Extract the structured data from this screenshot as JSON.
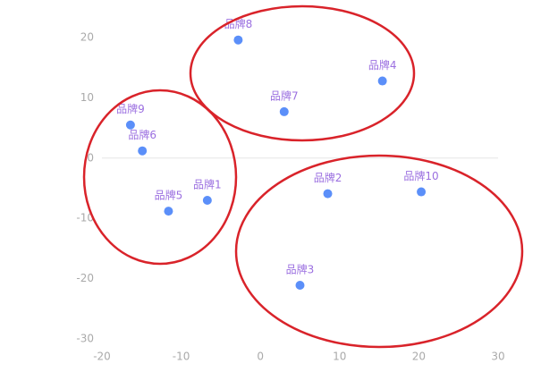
{
  "chart_data": {
    "type": "scatter",
    "series": [
      {
        "color": "#5b8ff9",
        "label_color": "#9b6fe0",
        "labels": [
          "品牌1",
          "品牌2",
          "品牌3",
          "品牌4",
          "品牌5",
          "品牌6",
          "品牌7",
          "品牌8",
          "品牌9",
          "品牌10"
        ],
        "x": [
          -6.7,
          8.5,
          5.0,
          15.4,
          -11.6,
          -14.9,
          3.0,
          -2.8,
          -16.4,
          20.3
        ],
        "values": [
          -7.0,
          -5.9,
          -21.1,
          12.8,
          -8.8,
          1.2,
          7.7,
          19.6,
          5.5,
          -5.6
        ]
      }
    ],
    "xlim": [
      -20,
      30
    ],
    "xticks": [
      -20,
      -10,
      0,
      10,
      20,
      30
    ],
    "ylim": [
      -30,
      20
    ],
    "yticks": [
      -30,
      -20,
      -10,
      0,
      10,
      20
    ],
    "zero_line": true
  }
}
